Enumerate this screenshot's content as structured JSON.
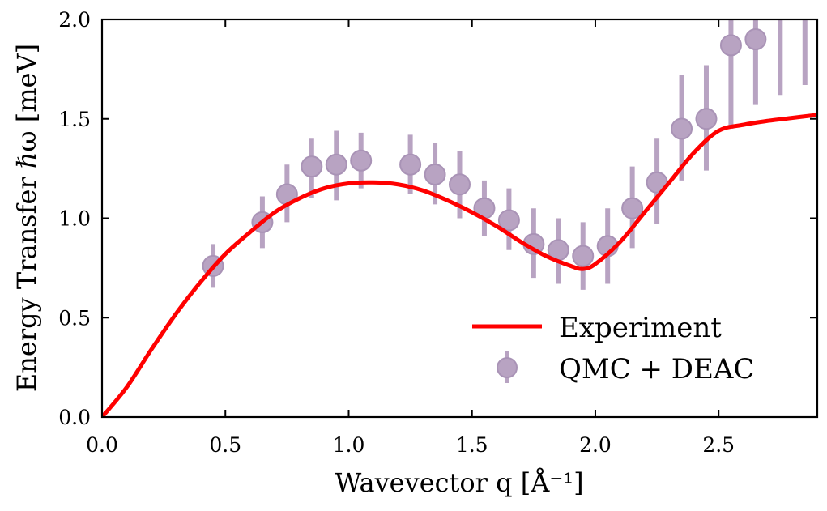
{
  "chart_data": {
    "type": "line",
    "xlabel": "Wavevector q [Å⁻¹]",
    "ylabel": "Energy Transfer ℏω [meV]",
    "xlim": [
      0.0,
      2.9
    ],
    "ylim": [
      0.0,
      2.0
    ],
    "xticks": [
      "0.0",
      "0.5",
      "1.0",
      "1.5",
      "2.0",
      "2.5"
    ],
    "yticks": [
      "0.0",
      "0.5",
      "1.0",
      "1.5",
      "2.0"
    ],
    "grid": false,
    "legend_position": "lower-right",
    "series": [
      {
        "name": "Experiment",
        "kind": "line",
        "color": "#ff0000",
        "x": [
          0.0,
          0.1,
          0.2,
          0.3,
          0.4,
          0.5,
          0.6,
          0.7,
          0.8,
          0.9,
          1.0,
          1.1,
          1.2,
          1.3,
          1.4,
          1.5,
          1.6,
          1.7,
          1.8,
          1.9,
          1.95,
          2.0,
          2.1,
          2.2,
          2.3,
          2.4,
          2.5,
          2.6,
          2.7,
          2.8,
          2.9
        ],
        "y": [
          0.0,
          0.15,
          0.34,
          0.52,
          0.68,
          0.82,
          0.93,
          1.03,
          1.1,
          1.15,
          1.175,
          1.18,
          1.17,
          1.14,
          1.09,
          1.03,
          0.96,
          0.88,
          0.81,
          0.76,
          0.745,
          0.77,
          0.88,
          1.03,
          1.18,
          1.33,
          1.44,
          1.47,
          1.49,
          1.505,
          1.52
        ]
      },
      {
        "name": "QMC + DEAC",
        "kind": "errorbar",
        "color": "#b8a3c2",
        "x": [
          0.45,
          0.65,
          0.75,
          0.85,
          0.95,
          1.05,
          1.25,
          1.35,
          1.45,
          1.55,
          1.65,
          1.75,
          1.85,
          1.95,
          2.05,
          2.15,
          2.25,
          2.35,
          2.45,
          2.55,
          2.65,
          2.75,
          2.85
        ],
        "y": [
          0.76,
          0.98,
          1.12,
          1.26,
          1.27,
          1.29,
          1.27,
          1.22,
          1.17,
          1.05,
          0.99,
          0.87,
          0.84,
          0.81,
          0.86,
          1.05,
          1.18,
          1.45,
          1.5,
          1.87,
          1.9,
          2.1,
          2.1
        ],
        "yerr_low": [
          0.11,
          0.13,
          0.14,
          0.16,
          0.18,
          0.14,
          0.15,
          0.15,
          0.17,
          0.14,
          0.15,
          0.17,
          0.17,
          0.17,
          0.19,
          0.2,
          0.21,
          0.26,
          0.26,
          0.42,
          0.33,
          0.48,
          0.43
        ],
        "yerr_high": [
          0.11,
          0.13,
          0.15,
          0.14,
          0.17,
          0.14,
          0.15,
          0.16,
          0.17,
          0.14,
          0.16,
          0.18,
          0.16,
          0.17,
          0.19,
          0.21,
          0.22,
          0.27,
          0.27,
          0.43,
          0.4,
          0.48,
          0.43
        ]
      }
    ]
  }
}
